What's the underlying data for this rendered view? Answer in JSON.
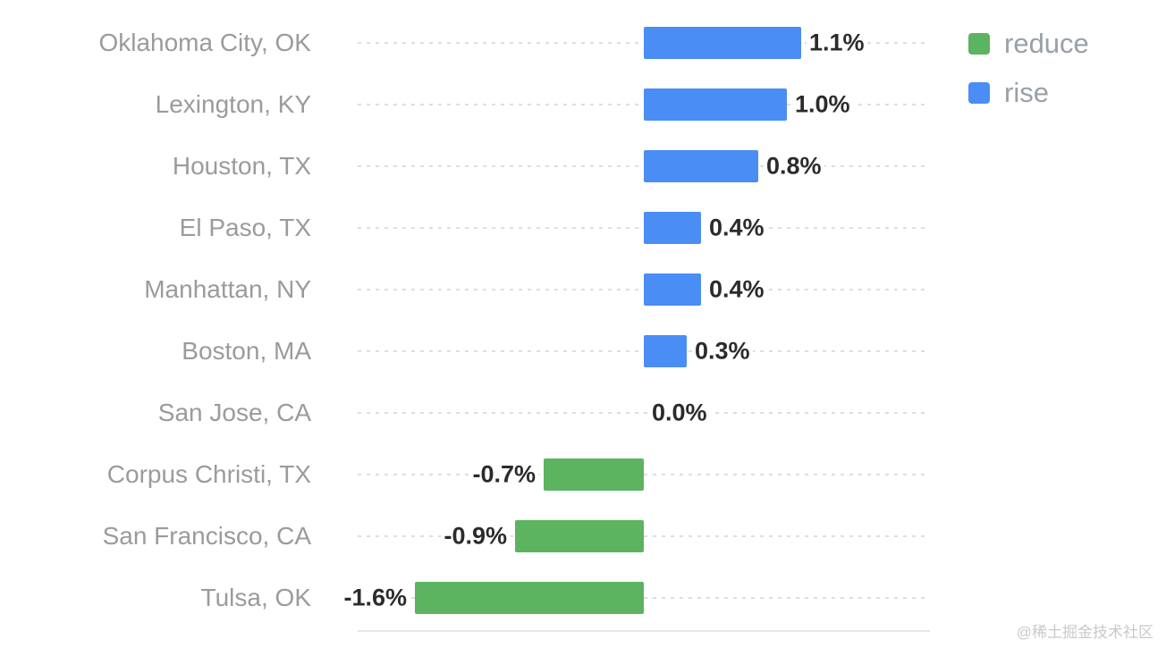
{
  "chart_data": {
    "type": "bar",
    "orientation": "horizontal",
    "title": "",
    "xlabel": "",
    "ylabel": "",
    "xlim": [
      -2,
      2
    ],
    "grid": "dashed horizontal per category, solid bottom axis",
    "legend_position": "top-right",
    "categories": [
      "Oklahoma City, OK",
      "Lexington, KY",
      "Houston, TX",
      "El Paso, TX",
      "Manhattan, NY",
      "Boston, MA",
      "San Jose, CA",
      "Corpus Christi, TX",
      "San Francisco, CA",
      "Tulsa, OK"
    ],
    "values": [
      1.1,
      1.0,
      0.8,
      0.4,
      0.4,
      0.3,
      0.0,
      -0.7,
      -0.9,
      -1.6
    ],
    "value_labels": [
      "1.1%",
      "1.0%",
      "0.8%",
      "0.4%",
      "0.4%",
      "0.3%",
      "0.0%",
      "-0.7%",
      "-0.9%",
      "-1.6%"
    ],
    "colors": {
      "rise": "#4a8df5",
      "reduce": "#5cb360"
    },
    "legend": [
      {
        "label": "reduce",
        "color": "#5cb360"
      },
      {
        "label": "rise",
        "color": "#4a8df5"
      }
    ]
  },
  "watermark": "@稀土掘金技术社区"
}
